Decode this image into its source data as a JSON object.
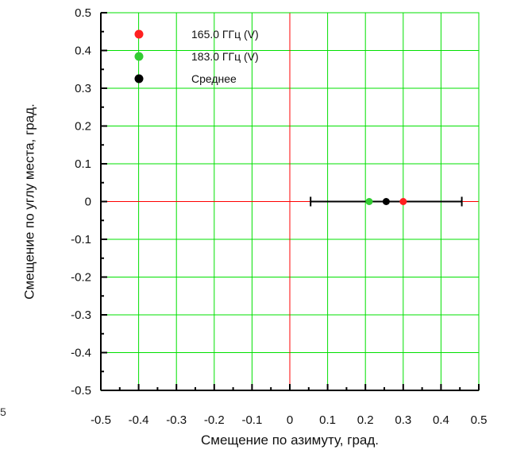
{
  "stray_label": "5",
  "chart_data": {
    "type": "scatter",
    "xlabel": "Смещение по азимуту, град.",
    "ylabel": "Смещение по углу места, град.",
    "xlim": [
      -0.5,
      0.5
    ],
    "ylim": [
      -0.5,
      0.5
    ],
    "xticks": [
      "-0.5",
      "-0.4",
      "-0.3",
      "-0.2",
      "-0.1",
      "0",
      "0.1",
      "0.2",
      "0.3",
      "0.4",
      "0.5"
    ],
    "yticks": [
      "0.5",
      "0.4",
      "0.3",
      "0.2",
      "0.1",
      "0",
      "-0.1",
      "-0.2",
      "-0.3",
      "-0.4",
      "-0.5"
    ],
    "grid": true,
    "grid_color": "#00e000",
    "zero_line_color": "#ff0000",
    "legend_position": "top-left",
    "series": [
      {
        "name": "165.0 ГГц (V)",
        "color": "#ff2020",
        "points": [
          {
            "x": 0.3,
            "y": 0
          }
        ]
      },
      {
        "name": "183.0 ГГц (V)",
        "color": "#33cc33",
        "points": [
          {
            "x": 0.21,
            "y": 0
          }
        ]
      },
      {
        "name": "Среднее",
        "color": "#000000",
        "points": [
          {
            "x": 0.255,
            "y": 0
          }
        ],
        "error_x": [
          0.055,
          0.455
        ],
        "error_color_mid": "#006600"
      }
    ]
  }
}
